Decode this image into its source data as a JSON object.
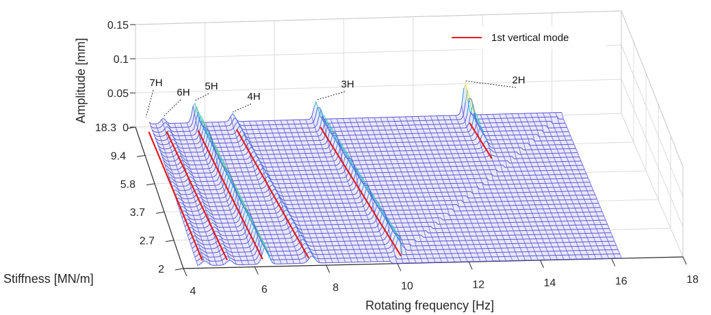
{
  "chart_data": {
    "type": "surface",
    "title": "",
    "xlabel": "Rotating frequency [Hz]",
    "ylabel": "Stiffness [MN/m]",
    "zlabel": "Amplitude [mm]",
    "xlim": [
      4,
      18
    ],
    "zlim": [
      0,
      0.15
    ],
    "x_ticks": [
      "4",
      "6",
      "8",
      "10",
      "12",
      "14",
      "16",
      "18"
    ],
    "y_ticks": [
      "2",
      "2.7",
      "3.7",
      "5.8",
      "9.4",
      "18.3"
    ],
    "z_ticks": [
      "0",
      "0.05",
      "0.1",
      "0.15"
    ],
    "grid": true,
    "colormap": "parula",
    "legend": {
      "position": "top-right",
      "entries": [
        {
          "label": "1st vertical mode",
          "color": "#e31a1c"
        }
      ]
    },
    "harmonics": [
      {
        "label": "7H",
        "x_at_stiff": 4.3,
        "x_at_soft": 4.6
      },
      {
        "label": "6H",
        "x_at_stiff": 4.8,
        "x_at_soft": 5.3
      },
      {
        "label": "5H",
        "x_at_stiff": 5.7,
        "x_at_soft": 6.3
      },
      {
        "label": "4H",
        "x_at_stiff": 6.8,
        "x_at_soft": 7.6
      },
      {
        "label": "3H",
        "x_at_stiff": 9.2,
        "x_at_soft": 10.2
      },
      {
        "label": "2H",
        "x_at_stiff": 13.5,
        "x_at_soft": 14.4
      }
    ],
    "surface": {
      "x_range": [
        4.4,
        16.3
      ],
      "baseline_amplitude": 0.004,
      "peaks": [
        {
          "harmonic": "7H",
          "amplitude": 0.008
        },
        {
          "harmonic": "6H",
          "amplitude": 0.008
        },
        {
          "harmonic": "5H",
          "amplitude": 0.03
        },
        {
          "harmonic": "4H",
          "amplitude": 0.012
        },
        {
          "harmonic": "3H",
          "amplitude": 0.026
        },
        {
          "harmonic": "2H",
          "amplitude": 0.048
        }
      ]
    }
  }
}
